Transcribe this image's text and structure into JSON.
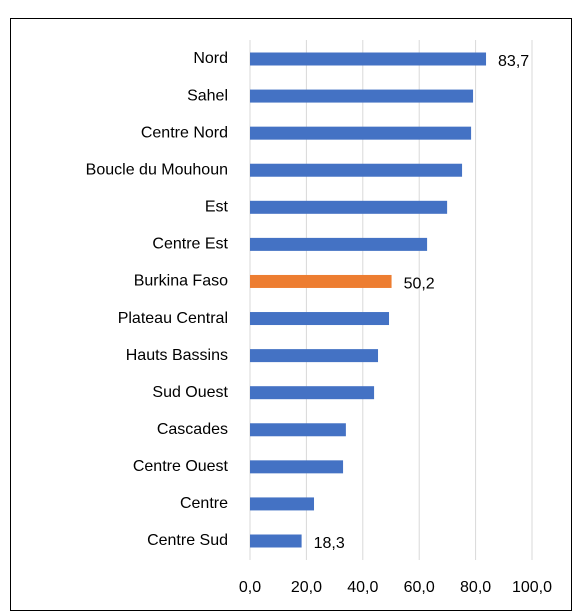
{
  "chart_data": {
    "type": "bar",
    "orientation": "horizontal",
    "categories": [
      "Nord",
      "Sahel",
      "Centre Nord",
      "Boucle du Mouhoun",
      "Est",
      "Centre Est",
      "Burkina Faso",
      "Plateau Central",
      "Hauts Bassins",
      "Sud Ouest",
      "Cascades",
      "Centre Ouest",
      "Centre",
      "Centre Sud"
    ],
    "values": [
      83.7,
      79.1,
      78.4,
      75.2,
      69.9,
      62.8,
      50.2,
      49.3,
      45.4,
      44.0,
      34.0,
      33.0,
      22.7,
      18.3
    ],
    "value_labels": [
      "83,7",
      null,
      null,
      null,
      null,
      null,
      "50,2",
      null,
      null,
      null,
      null,
      null,
      null,
      "18,3"
    ],
    "colors": [
      "#4472c4",
      "#4472c4",
      "#4472c4",
      "#4472c4",
      "#4472c4",
      "#4472c4",
      "#ed7d31",
      "#4472c4",
      "#4472c4",
      "#4472c4",
      "#4472c4",
      "#4472c4",
      "#4472c4",
      "#4472c4"
    ],
    "xlim": [
      0,
      100
    ],
    "xticks": [
      {
        "value": 0,
        "label": "0,0"
      },
      {
        "value": 20,
        "label": "20,0"
      },
      {
        "value": 40,
        "label": "40,0"
      },
      {
        "value": 60,
        "label": "60,0"
      },
      {
        "value": 80,
        "label": "80,0"
      },
      {
        "value": 100,
        "label": "100,0"
      }
    ],
    "grid": true
  }
}
